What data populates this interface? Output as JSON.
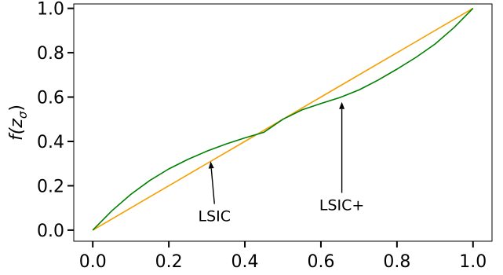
{
  "chart_data": {
    "type": "line",
    "title": "",
    "xlabel": "",
    "ylabel": "f(zσ)",
    "ylabel_parts": {
      "base": "f(z",
      "sub": "σ",
      "close": ")"
    },
    "xlim": [
      -0.05,
      1.05
    ],
    "ylim": [
      -0.05,
      1.02
    ],
    "xticks": [
      0.0,
      0.2,
      0.4,
      0.6,
      0.8,
      1.0
    ],
    "xtick_labels": [
      "0.0",
      "0.2",
      "0.4",
      "0.6",
      "0.8",
      "1.0"
    ],
    "yticks": [
      0.0,
      0.2,
      0.4,
      0.6,
      0.8,
      1.0
    ],
    "ytick_labels": [
      "0.0",
      "0.2",
      "0.4",
      "0.6",
      "0.8",
      "1.0"
    ],
    "grid": false,
    "legend": "none",
    "series": [
      {
        "color": "#f5a000",
        "x": [
          0.0,
          0.2,
          0.4,
          0.5,
          0.6,
          0.8,
          1.0
        ],
        "y": [
          0.0,
          0.2,
          0.4,
          0.5,
          0.6,
          0.8,
          1.0
        ]
      },
      {
        "color": "#008000",
        "x": [
          0.0,
          0.05,
          0.1,
          0.15,
          0.2,
          0.25,
          0.3,
          0.35,
          0.4,
          0.45,
          0.5,
          0.55,
          0.6,
          0.65,
          0.7,
          0.75,
          0.8,
          0.85,
          0.9,
          0.95,
          1.0
        ],
        "y": [
          0.0,
          0.087,
          0.161,
          0.224,
          0.276,
          0.319,
          0.356,
          0.388,
          0.416,
          0.441,
          0.5,
          0.542,
          0.571,
          0.598,
          0.632,
          0.676,
          0.726,
          0.779,
          0.839,
          0.913,
          1.0
        ]
      }
    ],
    "annotations": [
      {
        "text": "LSIC",
        "point": [
          0.31,
          0.31
        ],
        "text_at": [
          0.32,
          0.04
        ]
      },
      {
        "text": "LSIC+",
        "point": [
          0.655,
          0.578
        ],
        "text_at": [
          0.655,
          0.09
        ]
      }
    ]
  }
}
